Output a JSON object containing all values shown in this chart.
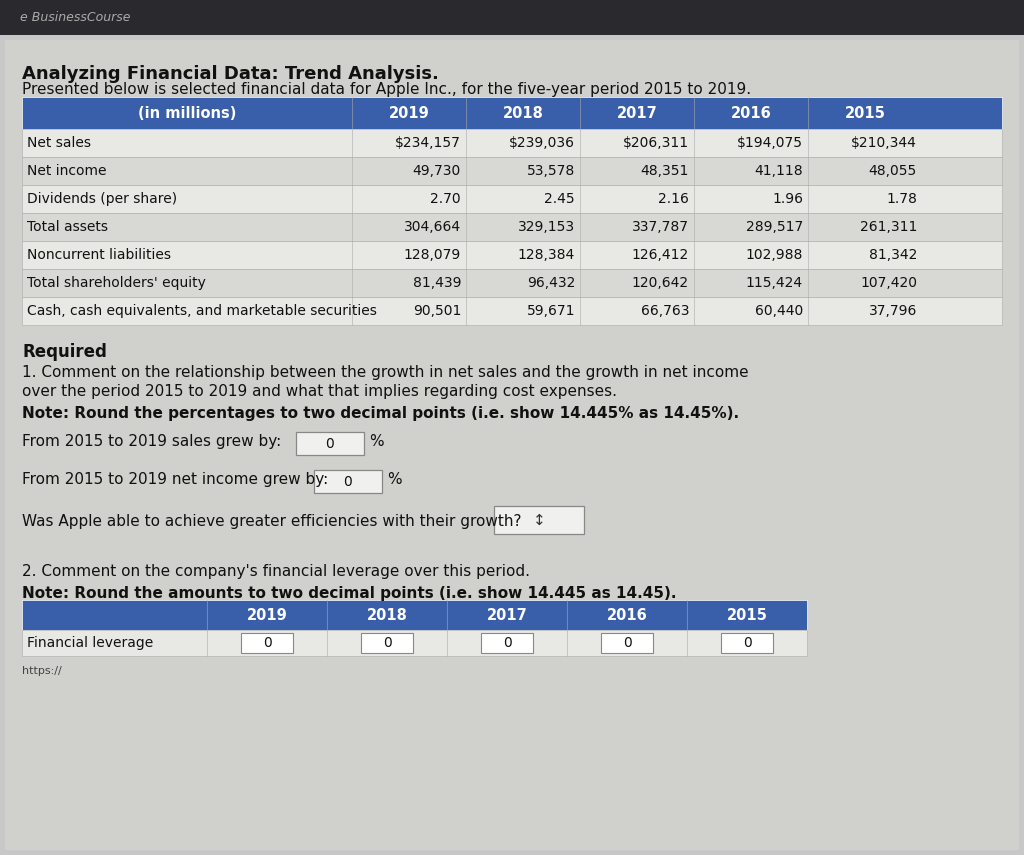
{
  "title1": "Analyzing Financial Data: Trend Analysis.",
  "title2": "Presented below is selected financial data for Apple Inc., for the five-year period 2015 to 2019.",
  "bg_top": "#2a2a2e",
  "bg_main": "#c8c8c8",
  "content_bg": "#d0d0cc",
  "header_bg": "#3a5faa",
  "header_text_color": "#ffffff",
  "table_header": [
    "(in millions)",
    "2019",
    "2018",
    "2017",
    "2016",
    "2015"
  ],
  "table_rows": [
    [
      "Net sales",
      "$234,157",
      "$239,036",
      "$206,311",
      "$194,075",
      "$210,344"
    ],
    [
      "Net income",
      "49,730",
      "53,578",
      "48,351",
      "41,118",
      "48,055"
    ],
    [
      "Dividends (per share)",
      "2.70",
      "2.45",
      "2.16",
      "1.96",
      "1.78"
    ],
    [
      "Total assets",
      "304,664",
      "329,153",
      "337,787",
      "289,517",
      "261,311"
    ],
    [
      "Noncurrent liabilities",
      "128,079",
      "128,384",
      "126,412",
      "102,988",
      "81,342"
    ],
    [
      "Total shareholders' equity",
      "81,439",
      "96,432",
      "120,642",
      "115,424",
      "107,420"
    ],
    [
      "Cash, cash equivalents, and marketable securities",
      "90,501",
      "59,671",
      "66,763",
      "60,440",
      "37,796"
    ]
  ],
  "required_text": "Required",
  "q1_line1": "1. Comment on the relationship between the growth in net sales and the growth in net income",
  "q1_line2": "over the period 2015 to 2019 and what that implies regarding cost expenses.",
  "q1_note": "Note: Round the percentages to two decimal points (i.e. show 14.445% as 14.45%).",
  "q1_sales_label": "From 2015 to 2019 sales grew by:",
  "q1_sales_value": "0",
  "q1_sales_unit": "%",
  "q1_income_label": "From 2015 to 2019 net income grew by:",
  "q1_income_value": "0",
  "q1_income_unit": "%",
  "q1_efficiency": "Was Apple able to achieve greater efficiencies with their growth?",
  "q2_line1": "2. Comment on the company's financial leverage over this period.",
  "q2_note": "Note: Round the amounts to two decimal points (i.e. show 14.445 as 14.45).",
  "fl_header": [
    "",
    "2019",
    "2018",
    "2017",
    "2016",
    "2015"
  ],
  "fl_row": [
    "Financial leverage",
    "0",
    "0",
    "0",
    "0",
    "0"
  ],
  "url_text": "https://",
  "browser_logo": "e BusinessCourse",
  "row_color_even": "#e8e8e4",
  "row_color_odd": "#d8d8d4",
  "cell_border": "#aaaaaa",
  "input_box_border": "#888888",
  "input_box_bg": "#f0f0ee"
}
